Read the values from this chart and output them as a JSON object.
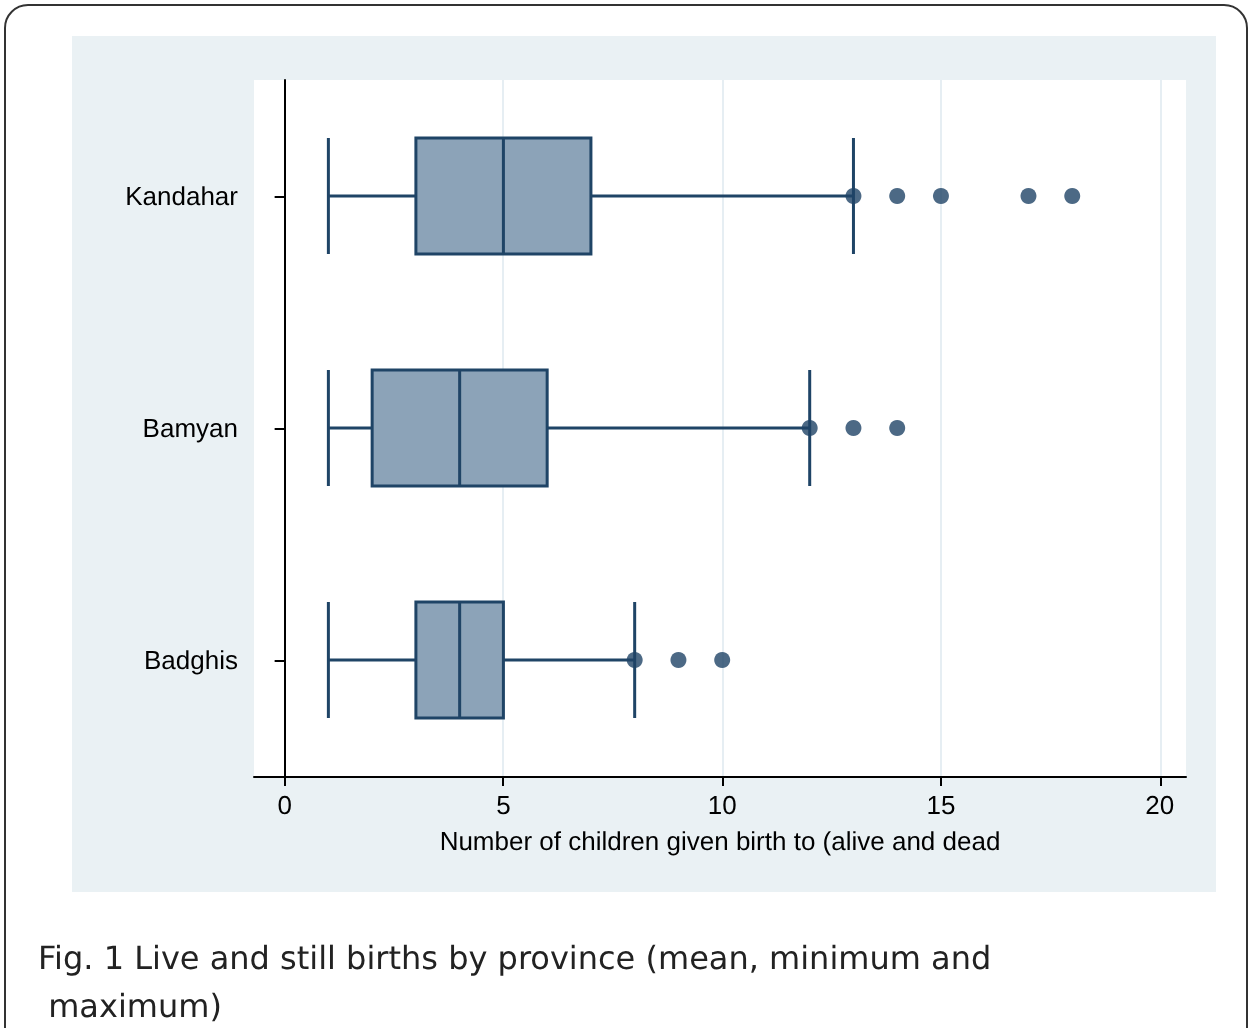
{
  "chart_data": {
    "type": "box",
    "orientation": "horizontal",
    "title": "Fig. 1 Live and still births by province (mean, minimum and maximum)",
    "xlabel": "Number of children given birth to (alive and dead",
    "categories": [
      "Kandahar",
      "Bamyan",
      "Badghis"
    ],
    "color": "#8ca3b8",
    "boxes": [
      {
        "low": 1,
        "q1": 3,
        "median": 5,
        "q3": 7,
        "high": 13,
        "outliers": [
          13,
          14,
          15,
          17,
          18
        ]
      },
      {
        "low": 1,
        "q1": 2,
        "median": 4,
        "q3": 6,
        "high": 12,
        "outliers": [
          12,
          13,
          14
        ]
      },
      {
        "low": 1,
        "q1": 3,
        "median": 4,
        "q3": 5,
        "high": 8,
        "outliers": [
          8,
          9,
          10
        ]
      }
    ],
    "xlim": [
      -0.7,
      20.6
    ],
    "xticks": [
      0,
      5,
      10,
      15,
      20
    ],
    "grid": "x"
  }
}
